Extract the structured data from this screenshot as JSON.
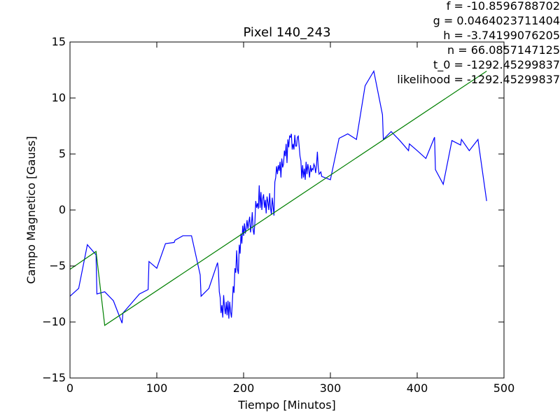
{
  "chart_data": {
    "type": "line",
    "title": "Pixel 140_243",
    "xlabel": "Tiempo [Minutos]",
    "ylabel": "Campo Magnetico [Gauss]",
    "xlim": [
      0,
      500
    ],
    "ylim": [
      -15,
      15
    ],
    "xticks": [
      0,
      100,
      200,
      300,
      400,
      500
    ],
    "yticks": [
      -15,
      -10,
      -5,
      0,
      5,
      10,
      15
    ],
    "xtick_labels": [
      "0",
      "100",
      "200",
      "300",
      "400",
      "500"
    ],
    "ytick_labels": [
      "−15",
      "−10",
      "−5",
      "0",
      "5",
      "10",
      "15"
    ],
    "grid": false,
    "annotations": [
      "f = -10.8596788702",
      "g = 0.0464023711404",
      "h = -3.74199076205",
      "n = 66.0857147125",
      "t_0 = -1292.45299837",
      "likelihood = -1292.45299837"
    ],
    "series": [
      {
        "color": "#0000ff",
        "x": [
          0,
          10,
          20,
          30,
          31,
          40,
          50,
          60,
          61,
          70,
          80,
          90,
          91,
          100,
          110,
          120,
          121,
          130,
          140,
          150,
          151,
          160,
          170,
          171,
          172,
          173,
          174,
          175,
          176,
          177,
          178,
          179,
          180,
          181,
          182,
          183,
          184,
          185,
          186,
          187,
          188,
          189,
          190,
          191,
          192,
          193,
          194,
          195,
          196,
          197,
          198,
          199,
          200,
          201,
          202,
          203,
          204,
          205,
          206,
          207,
          208,
          209,
          210,
          211,
          212,
          213,
          214,
          215,
          216,
          217,
          218,
          219,
          220,
          221,
          222,
          223,
          224,
          225,
          226,
          227,
          228,
          229,
          230,
          231,
          232,
          233,
          234,
          235,
          236,
          237,
          238,
          239,
          240,
          241,
          242,
          243,
          244,
          245,
          246,
          247,
          248,
          249,
          250,
          251,
          252,
          253,
          254,
          255,
          256,
          257,
          258,
          259,
          260,
          261,
          262,
          263,
          264,
          265,
          266,
          267,
          268,
          269,
          270,
          271,
          272,
          273,
          274,
          275,
          276,
          277,
          278,
          279,
          280,
          281,
          282,
          283,
          284,
          285,
          286,
          287,
          288,
          289,
          290,
          300,
          310,
          320,
          330,
          340,
          350,
          360,
          361,
          370,
          380,
          390,
          391,
          400,
          410,
          420,
          421,
          430,
          440,
          450,
          451,
          460,
          470,
          480
        ],
        "y": [
          -7.7,
          -7.0,
          -3.1,
          -4.0,
          -7.5,
          -7.3,
          -8.1,
          -10.1,
          -9.2,
          -8.4,
          -7.5,
          -7.1,
          -4.6,
          -5.2,
          -3.0,
          -2.9,
          -2.7,
          -2.3,
          -2.3,
          -5.8,
          -7.7,
          -7.0,
          -4.7,
          -5.4,
          -7.3,
          -7.8,
          -9.2,
          -8.5,
          -9.6,
          -7.6,
          -8.7,
          -9.3,
          -8.2,
          -9.4,
          -8.1,
          -9.7,
          -8.2,
          -9.1,
          -9.6,
          -8.3,
          -6.8,
          -7.4,
          -5.2,
          -5.6,
          -3.6,
          -5.3,
          -5.7,
          -3.1,
          -3.9,
          -2.1,
          -3.0,
          -1.4,
          -2.3,
          -1.2,
          -2.1,
          -1.6,
          -0.9,
          -1.7,
          -1.1,
          -0.6,
          -2.0,
          -1.3,
          -0.2,
          -1.8,
          -2.2,
          -1.1,
          0.8,
          0.2,
          0.6,
          0.1,
          2.2,
          0.2,
          1.6,
          0.0,
          1.0,
          1.4,
          0.2,
          0.9,
          -0.3,
          1.2,
          0.7,
          0.0,
          1.5,
          0.2,
          -0.4,
          1.1,
          0.3,
          -0.5,
          2.5,
          2.9,
          3.9,
          3.2,
          4.0,
          3.5,
          4.3,
          2.9,
          4.6,
          3.8,
          4.1,
          5.3,
          4.8,
          5.9,
          4.2,
          6.3,
          5.6,
          6.6,
          6.5,
          6.8,
          5.4,
          5.9,
          5.4,
          6.7,
          5.7,
          5.7,
          6.5,
          6.6,
          5.7,
          4.8,
          4.4,
          2.8,
          4.0,
          2.9,
          3.7,
          2.7,
          4.3,
          3.2,
          4.1,
          3.6,
          2.9,
          4.0,
          3.4,
          3.7,
          3.6,
          4.1,
          3.9,
          3.3,
          4.0,
          5.2,
          3.8,
          3.2,
          3.3,
          3.4,
          3.0,
          2.7,
          6.4,
          6.8,
          6.3,
          11.1,
          12.4,
          8.5,
          6.3,
          7.0,
          6.2,
          5.3,
          5.9,
          5.3,
          4.6,
          6.5,
          3.6,
          2.3,
          6.2,
          5.8,
          6.3,
          5.3,
          6.3,
          0.8
        ]
      },
      {
        "color": "#008000",
        "x": [
          0,
          30,
          40,
          480
        ],
        "y": [
          -5.3,
          -3.7,
          -10.3,
          12.4
        ]
      }
    ]
  }
}
